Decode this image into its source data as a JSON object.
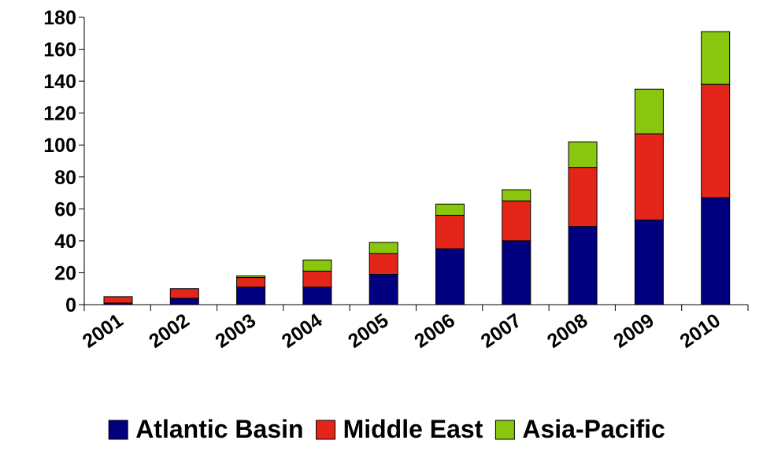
{
  "chart_data": {
    "type": "bar",
    "stacked": true,
    "title": "",
    "xlabel": "",
    "ylabel": "",
    "categories": [
      "2001",
      "2002",
      "2003",
      "2004",
      "2005",
      "2006",
      "2007",
      "2008",
      "2009",
      "2010"
    ],
    "series": [
      {
        "name": "Atlantic Basin",
        "color": "#00007f",
        "values": [
          1,
          4,
          11,
          11,
          19,
          35,
          40,
          49,
          53,
          67
        ]
      },
      {
        "name": "Middle East",
        "color": "#e3251a",
        "values": [
          4,
          6,
          6,
          10,
          13,
          21,
          25,
          37,
          54,
          71
        ]
      },
      {
        "name": "Asia-Pacific",
        "color": "#88c70e",
        "values": [
          0,
          0,
          1,
          7,
          7,
          7,
          7,
          16,
          28,
          33
        ]
      }
    ],
    "ylim": [
      0,
      180
    ],
    "yticks": [
      0,
      20,
      40,
      60,
      80,
      100,
      120,
      140,
      160,
      180
    ],
    "grid": false,
    "legend": {
      "position": "bottom"
    }
  }
}
